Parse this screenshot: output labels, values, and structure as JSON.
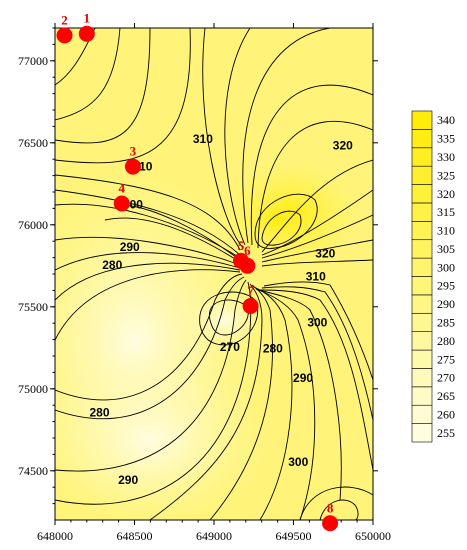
{
  "chart_data": {
    "type": "contour",
    "xlim": [
      648000,
      650000
    ],
    "ylim": [
      74200,
      77200
    ],
    "x_ticks": [
      {
        "value": 648000,
        "label": "648000"
      },
      {
        "value": 648500,
        "label": "648500"
      },
      {
        "value": 649000,
        "label": "649000"
      },
      {
        "value": 649500,
        "label": "649500"
      },
      {
        "value": 650000,
        "label": "650000"
      }
    ],
    "y_ticks": [
      {
        "value": 74500,
        "label": "74500"
      },
      {
        "value": 75000,
        "label": "75000"
      },
      {
        "value": 75500,
        "label": "75500"
      },
      {
        "value": 76000,
        "label": "76000"
      },
      {
        "value": 76500,
        "label": "76500"
      },
      {
        "value": 77000,
        "label": "77000"
      }
    ],
    "wells": [
      {
        "label": "1",
        "x": 648200,
        "y": 77165
      },
      {
        "label": "2",
        "x": 648060,
        "y": 77155
      },
      {
        "label": "3",
        "x": 648490,
        "y": 76355
      },
      {
        "label": "4",
        "x": 648420,
        "y": 76130
      },
      {
        "label": "5",
        "x": 649170,
        "y": 75780
      },
      {
        "label": "6",
        "x": 649210,
        "y": 75750
      },
      {
        "label": "7",
        "x": 649230,
        "y": 75505
      },
      {
        "label": "8",
        "x": 649730,
        "y": 74180
      }
    ],
    "contour_labels": [
      {
        "text": "310",
        "x": 648550,
        "y": 76330
      },
      {
        "text": "300",
        "x": 648490,
        "y": 76100
      },
      {
        "text": "290",
        "x": 648470,
        "y": 75840
      },
      {
        "text": "280",
        "x": 648360,
        "y": 75730
      },
      {
        "text": "270",
        "x": 649100,
        "y": 75230
      },
      {
        "text": "280",
        "x": 649370,
        "y": 75220
      },
      {
        "text": "290",
        "x": 649560,
        "y": 75040
      },
      {
        "text": "300",
        "x": 649650,
        "y": 75380
      },
      {
        "text": "310",
        "x": 649640,
        "y": 75660
      },
      {
        "text": "320",
        "x": 649700,
        "y": 75800
      },
      {
        "text": "320",
        "x": 649810,
        "y": 76460
      },
      {
        "text": "280",
        "x": 648280,
        "y": 74830
      },
      {
        "text": "290",
        "x": 648460,
        "y": 74420
      },
      {
        "text": "300",
        "x": 649530,
        "y": 74530
      },
      {
        "text": "310",
        "x": 648930,
        "y": 76500
      }
    ],
    "colorbar": {
      "levels": [
        255,
        260,
        265,
        270,
        275,
        280,
        285,
        290,
        295,
        300,
        305,
        310,
        315,
        320,
        325,
        330,
        335,
        340
      ],
      "colors": [
        "#fffde0",
        "#fffcd3",
        "#fffbc6",
        "#fffab9",
        "#fff9ac",
        "#fff8a0",
        "#fff793",
        "#fff686",
        "#fff579",
        "#fff46c",
        "#fff360",
        "#fff253",
        "#fff147",
        "#fff03a",
        "#ffef2e",
        "#ffee21",
        "#ffed15",
        "#ffec08"
      ]
    },
    "colors": {
      "low": "#fffde0",
      "high": "#ffec08",
      "well_marker": "#ff0000",
      "well_label": "#e00000",
      "contour_line": "#000000"
    }
  }
}
